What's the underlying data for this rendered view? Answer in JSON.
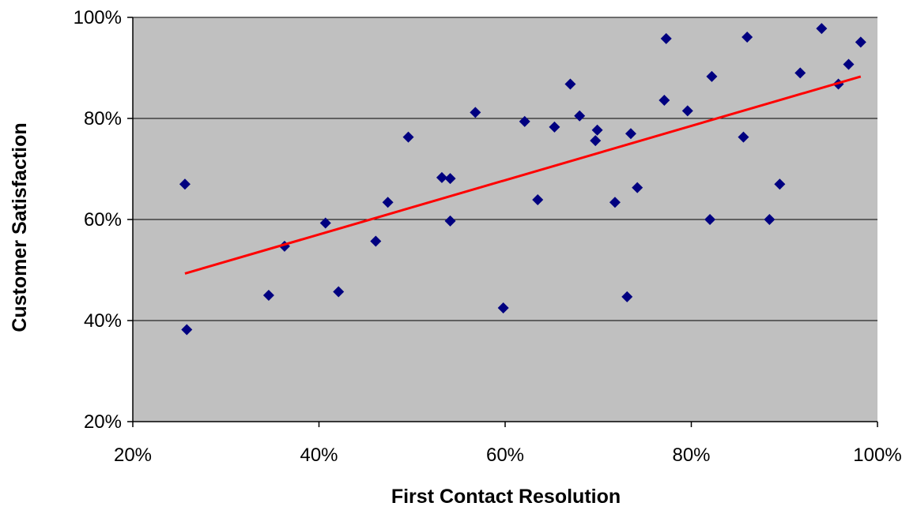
{
  "chart_data": {
    "type": "scatter",
    "title": "",
    "xlabel": "First Contact Resolution",
    "ylabel": "Customer Satisfaction",
    "xlim": [
      0.2,
      1.0
    ],
    "ylim": [
      0.2,
      1.0
    ],
    "x_ticks": [
      0.2,
      0.4,
      0.6,
      0.8,
      1.0
    ],
    "y_ticks": [
      0.2,
      0.4,
      0.6,
      0.8,
      1.0
    ],
    "x_tick_labels": [
      "20%",
      "40%",
      "60%",
      "80%",
      "100%"
    ],
    "y_tick_labels": [
      "20%",
      "40%",
      "60%",
      "80%",
      "100%"
    ],
    "grid": "horizontal major gridlines",
    "legend": "none",
    "colors": {
      "plot_area": "#c0c0c0",
      "marker": "#000080",
      "trendline": "#ff0000",
      "gridline": "#000000"
    },
    "series": [
      {
        "marker": "diamond",
        "points": [
          [
            0.256,
            0.67
          ],
          [
            0.258,
            0.382
          ],
          [
            0.346,
            0.45
          ],
          [
            0.363,
            0.547
          ],
          [
            0.407,
            0.593
          ],
          [
            0.421,
            0.457
          ],
          [
            0.461,
            0.557
          ],
          [
            0.474,
            0.634
          ],
          [
            0.496,
            0.763
          ],
          [
            0.532,
            0.683
          ],
          [
            0.541,
            0.681
          ],
          [
            0.541,
            0.597
          ],
          [
            0.568,
            0.812
          ],
          [
            0.598,
            0.425
          ],
          [
            0.621,
            0.794
          ],
          [
            0.635,
            0.639
          ],
          [
            0.653,
            0.783
          ],
          [
            0.67,
            0.868
          ],
          [
            0.68,
            0.805
          ],
          [
            0.697,
            0.756
          ],
          [
            0.699,
            0.777
          ],
          [
            0.718,
            0.634
          ],
          [
            0.731,
            0.447
          ],
          [
            0.735,
            0.77
          ],
          [
            0.742,
            0.663
          ],
          [
            0.771,
            0.836
          ],
          [
            0.773,
            0.958
          ],
          [
            0.796,
            0.815
          ],
          [
            0.82,
            0.6
          ],
          [
            0.822,
            0.883
          ],
          [
            0.856,
            0.763
          ],
          [
            0.86,
            0.961
          ],
          [
            0.884,
            0.6
          ],
          [
            0.895,
            0.67
          ],
          [
            0.917,
            0.89
          ],
          [
            0.94,
            0.978
          ],
          [
            0.958,
            0.868
          ],
          [
            0.969,
            0.907
          ],
          [
            0.982,
            0.951
          ]
        ]
      }
    ],
    "trendline": {
      "type": "linear",
      "x": [
        0.256,
        0.982
      ],
      "y": [
        0.493,
        0.883
      ]
    }
  }
}
